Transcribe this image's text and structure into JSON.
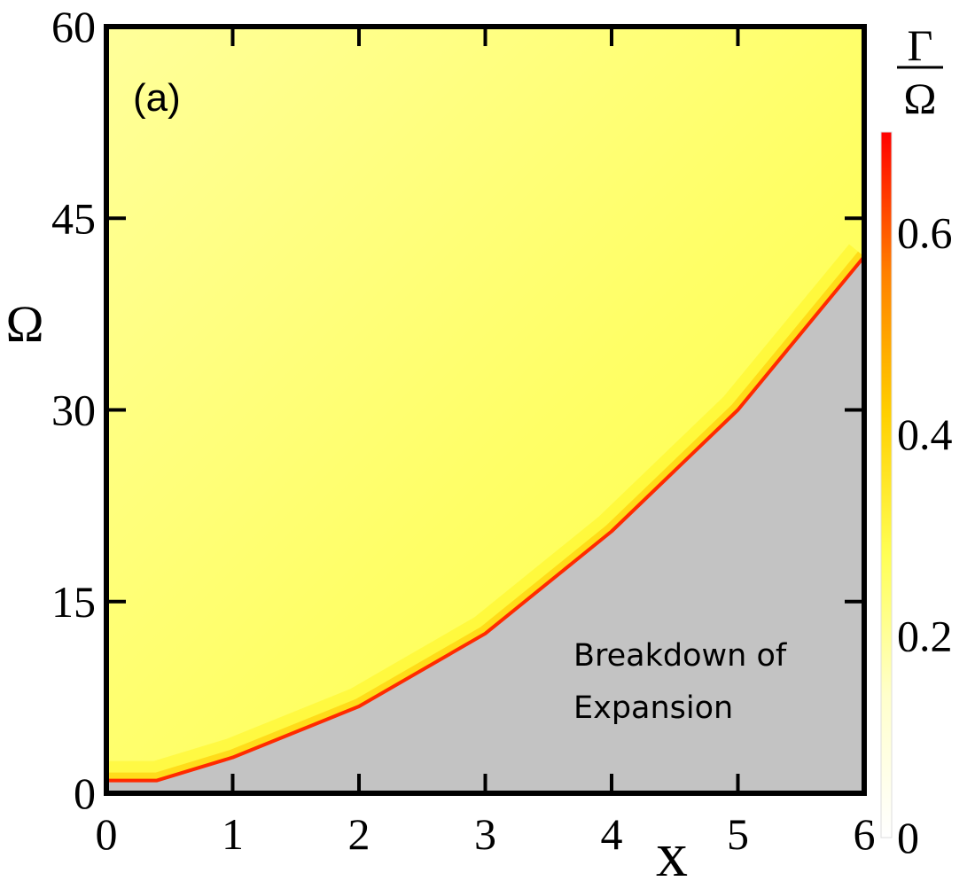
{
  "chart_data": {
    "type": "heatmap",
    "panel_label": "(a)",
    "xlabel": "x",
    "ylabel": "Ω",
    "xlim": [
      0,
      6
    ],
    "ylim": [
      0,
      60
    ],
    "x_ticks": [
      "0",
      "1",
      "2",
      "3",
      "4",
      "5",
      "6"
    ],
    "y_ticks": [
      "0",
      "15",
      "30",
      "45",
      "60"
    ],
    "colorbar": {
      "title_numerator": "Γ",
      "title_denominator": "Ω",
      "range": [
        0,
        0.7
      ],
      "ticks": [
        "0",
        "0.2",
        "0.4",
        "0.6"
      ],
      "tick_values": [
        0,
        0.2,
        0.4,
        0.6
      ],
      "colormap": [
        "#ffffff",
        "#ffffcc",
        "#ffff55",
        "#ffd000",
        "#ff8000",
        "#ff0000"
      ]
    },
    "breakdown_boundary": {
      "x": [
        0.0,
        0.4,
        1.0,
        2.0,
        3.0,
        4.0,
        5.0,
        6.0
      ],
      "omega": [
        1.0,
        1.0,
        2.8,
        6.8,
        12.5,
        20.5,
        30.0,
        42.0
      ]
    },
    "region_values": {
      "far_from_boundary": 0.23,
      "near_boundary": 0.33,
      "at_boundary": 0.7
    },
    "breakdown_region_color": "#c3c3c3",
    "annotation": [
      "Breakdown of",
      "Expansion"
    ]
  }
}
